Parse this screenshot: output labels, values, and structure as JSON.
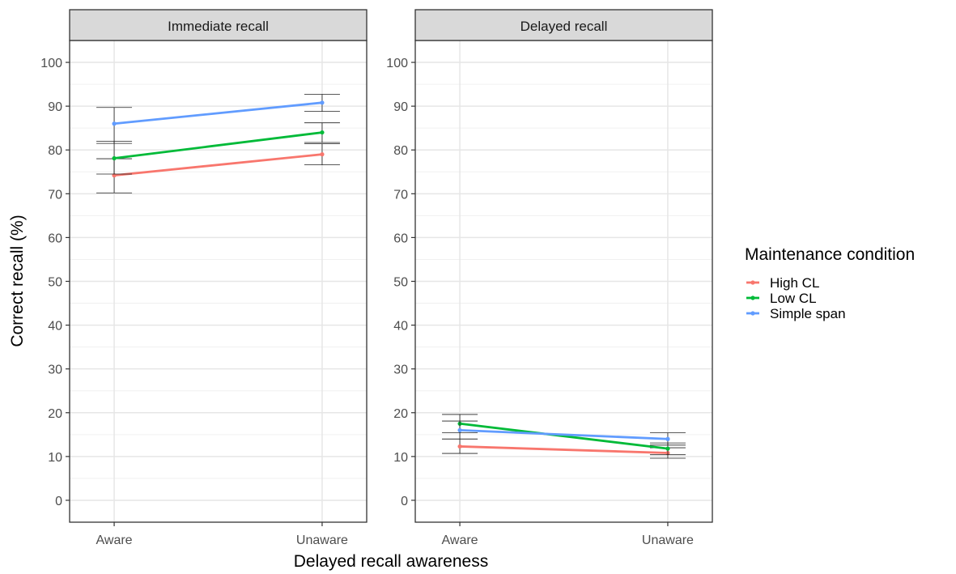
{
  "chart_data": {
    "type": "line",
    "xlabel": "Delayed recall awareness",
    "ylabel": "Correct recall (%)",
    "ylim": [
      -5,
      105
    ],
    "yticks": [
      0,
      10,
      20,
      30,
      40,
      50,
      60,
      70,
      80,
      90,
      100
    ],
    "categories": [
      "Aware",
      "Unaware"
    ],
    "grid": true,
    "error_bars": true,
    "legend": {
      "title": "Maintenance condition",
      "placement": "right",
      "entries": [
        {
          "name": "High CL",
          "color": "#F8766D"
        },
        {
          "name": "Low CL",
          "color": "#00BA38"
        },
        {
          "name": "Simple span",
          "color": "#619CFF"
        }
      ]
    },
    "panels": [
      {
        "title": "Immediate recall",
        "series": [
          {
            "name": "High CL",
            "values": [
              74.2,
              79.0
            ],
            "lower": [
              70.2,
              76.6
            ],
            "upper": [
              78.0,
              81.4
            ]
          },
          {
            "name": "Low CL",
            "values": [
              78.1,
              84.0
            ],
            "lower": [
              74.5,
              81.7
            ],
            "upper": [
              82.0,
              86.2
            ]
          },
          {
            "name": "Simple span",
            "values": [
              86.0,
              90.8
            ],
            "lower": [
              81.5,
              88.8
            ],
            "upper": [
              89.7,
              92.7
            ]
          }
        ]
      },
      {
        "title": "Delayed recall",
        "series": [
          {
            "name": "High CL",
            "values": [
              12.3,
              10.8
            ],
            "lower": [
              10.7,
              9.6
            ],
            "upper": [
              14.0,
              12.0
            ]
          },
          {
            "name": "Low CL",
            "values": [
              17.5,
              11.8
            ],
            "lower": [
              15.4,
              10.4
            ],
            "upper": [
              19.6,
              13.1
            ]
          },
          {
            "name": "Simple span",
            "values": [
              16.0,
              14.0
            ],
            "lower": [
              14.0,
              12.6
            ],
            "upper": [
              18.1,
              15.4
            ]
          }
        ]
      }
    ]
  }
}
